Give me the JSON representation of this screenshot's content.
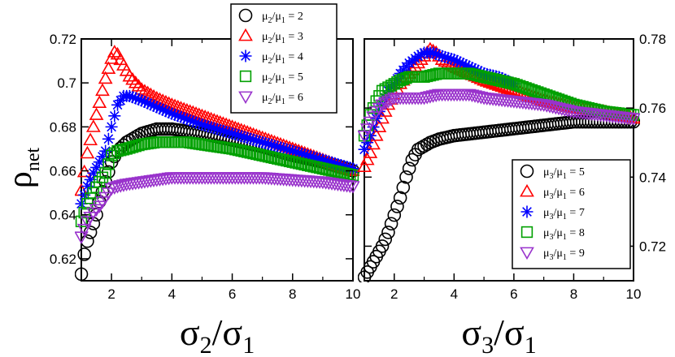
{
  "chart_data": [
    {
      "type": "scatter",
      "panel": "left",
      "ylabel": "ρ_net",
      "xlabel": "σ2/σ1",
      "xlim": [
        1,
        10
      ],
      "ylim": [
        0.61,
        0.72
      ],
      "xticks": [
        2,
        4,
        6,
        8,
        10
      ],
      "yticks": [
        0.62,
        0.64,
        0.66,
        0.68,
        0.7,
        0.72
      ],
      "ytick_labels": [
        "0.62",
        "0.64",
        "0.66",
        "0.68",
        "0.7",
        "0.72"
      ],
      "ytick_side": "left",
      "legend_position": "top-right",
      "series": [
        {
          "name": "μ2/μ1 = 2",
          "marker": "circle",
          "color": "#000000",
          "x": [
            1.0,
            1.1,
            1.2,
            1.3,
            1.4,
            1.5,
            1.6,
            1.8,
            2.0,
            2.2,
            2.5,
            3.0,
            3.5,
            3.8,
            4.0,
            4.5,
            5.0,
            6.0,
            7.0,
            8.0,
            9.0,
            10.0
          ],
          "y": [
            0.613,
            0.622,
            0.628,
            0.632,
            0.636,
            0.64,
            0.646,
            0.655,
            0.664,
            0.669,
            0.673,
            0.677,
            0.679,
            0.679,
            0.679,
            0.678,
            0.677,
            0.674,
            0.671,
            0.667,
            0.664,
            0.66
          ]
        },
        {
          "name": "μ2/μ1 = 3",
          "marker": "triangle-up",
          "color": "#ff0000",
          "x": [
            1.0,
            1.2,
            1.4,
            1.6,
            1.8,
            2.0,
            2.1,
            2.2,
            2.4,
            2.6,
            3.0,
            3.5,
            4.0,
            5.0,
            6.0,
            7.0,
            8.0,
            9.0,
            10.0
          ],
          "y": [
            0.651,
            0.668,
            0.68,
            0.691,
            0.702,
            0.711,
            0.714,
            0.713,
            0.708,
            0.703,
            0.697,
            0.693,
            0.69,
            0.685,
            0.68,
            0.675,
            0.67,
            0.665,
            0.66
          ]
        },
        {
          "name": "μ2/μ1 = 4",
          "marker": "asterisk",
          "color": "#0000ff",
          "x": [
            1.0,
            1.2,
            1.4,
            1.6,
            1.8,
            2.0,
            2.2,
            2.4,
            2.6,
            2.8,
            3.0,
            3.5,
            4.0,
            5.0,
            6.0,
            7.0,
            8.0,
            9.0,
            10.0
          ],
          "y": [
            0.645,
            0.653,
            0.659,
            0.664,
            0.669,
            0.68,
            0.69,
            0.694,
            0.694,
            0.693,
            0.692,
            0.689,
            0.686,
            0.681,
            0.677,
            0.673,
            0.669,
            0.665,
            0.661
          ]
        },
        {
          "name": "μ2/μ1 = 5",
          "marker": "square",
          "color": "#00a000",
          "x": [
            1.0,
            1.2,
            1.4,
            1.6,
            1.8,
            2.0,
            2.2,
            2.5,
            3.0,
            3.5,
            4.0,
            4.5,
            5.0,
            6.0,
            7.0,
            8.0,
            9.0,
            10.0
          ],
          "y": [
            0.637,
            0.645,
            0.65,
            0.655,
            0.659,
            0.667,
            0.669,
            0.67,
            0.672,
            0.673,
            0.673,
            0.673,
            0.672,
            0.67,
            0.667,
            0.664,
            0.661,
            0.658
          ]
        },
        {
          "name": "μ2/μ1 = 6",
          "marker": "triangle-down",
          "color": "#9933cc",
          "x": [
            1.0,
            1.2,
            1.4,
            1.6,
            1.8,
            2.0,
            2.2,
            2.5,
            3.0,
            3.5,
            4.0,
            4.5,
            5.0,
            6.0,
            7.0,
            8.0,
            9.0,
            10.0
          ],
          "y": [
            0.63,
            0.637,
            0.641,
            0.644,
            0.648,
            0.652,
            0.653,
            0.654,
            0.655,
            0.656,
            0.657,
            0.657,
            0.657,
            0.657,
            0.657,
            0.656,
            0.655,
            0.653
          ]
        }
      ]
    },
    {
      "type": "scatter",
      "panel": "right",
      "xlabel": "σ3/σ1",
      "xlim": [
        1,
        10
      ],
      "ylim": [
        0.71,
        0.78
      ],
      "xticks": [
        2,
        4,
        6,
        8,
        10
      ],
      "yticks": [
        0.72,
        0.74,
        0.76,
        0.78
      ],
      "ytick_labels": [
        "0.72",
        "0.74",
        "0.76",
        "0.78"
      ],
      "ytick_side": "right",
      "legend_position": "bottom-right",
      "series": [
        {
          "name": "μ3/μ1 = 5",
          "marker": "circle",
          "color": "#000000",
          "x": [
            1.0,
            1.2,
            1.4,
            1.6,
            1.8,
            2.0,
            2.2,
            2.4,
            2.6,
            2.8,
            3.0,
            3.2,
            3.5,
            4.0,
            5.0,
            6.0,
            7.0,
            8.0,
            9.0,
            10.0
          ],
          "y": [
            0.711,
            0.714,
            0.717,
            0.72,
            0.724,
            0.729,
            0.734,
            0.74,
            0.745,
            0.748,
            0.749,
            0.75,
            0.751,
            0.752,
            0.753,
            0.754,
            0.755,
            0.756,
            0.756,
            0.756
          ]
        },
        {
          "name": "μ3/μ1 = 6",
          "marker": "triangle-up",
          "color": "#ff0000",
          "x": [
            1.0,
            1.2,
            1.4,
            1.6,
            1.8,
            2.0,
            2.2,
            2.5,
            2.8,
            3.0,
            3.2,
            3.4,
            3.6,
            4.0,
            4.5,
            5.0,
            6.0,
            7.0,
            8.0,
            9.0,
            10.0
          ],
          "y": [
            0.743,
            0.747,
            0.752,
            0.757,
            0.761,
            0.764,
            0.767,
            0.77,
            0.773,
            0.775,
            0.777,
            0.776,
            0.774,
            0.772,
            0.77,
            0.768,
            0.765,
            0.762,
            0.76,
            0.759,
            0.757
          ]
        },
        {
          "name": "μ3/μ1 = 7",
          "marker": "asterisk",
          "color": "#0000ff",
          "x": [
            1.0,
            1.2,
            1.4,
            1.6,
            1.8,
            2.0,
            2.2,
            2.5,
            2.8,
            3.0,
            3.3,
            3.6,
            4.0,
            4.5,
            5.0,
            5.5,
            6.0
          ],
          "y": [
            0.748,
            0.752,
            0.757,
            0.761,
            0.765,
            0.767,
            0.77,
            0.773,
            0.775,
            0.776,
            0.776,
            0.775,
            0.774,
            0.772,
            0.77,
            0.769,
            0.767
          ]
        },
        {
          "name": "μ3/μ1 = 8",
          "marker": "square",
          "color": "#00a000",
          "x": [
            1.0,
            1.2,
            1.4,
            1.6,
            1.8,
            2.0,
            2.2,
            2.5,
            3.0,
            3.5,
            4.0,
            4.5,
            5.0,
            5.5,
            6.0,
            7.0,
            8.0,
            9.0,
            10.0
          ],
          "y": [
            0.752,
            0.758,
            0.762,
            0.765,
            0.766,
            0.767,
            0.768,
            0.769,
            0.769,
            0.77,
            0.77,
            0.77,
            0.769,
            0.768,
            0.767,
            0.764,
            0.761,
            0.759,
            0.758
          ]
        },
        {
          "name": "μ3/μ1 = 9",
          "marker": "triangle-down",
          "color": "#9933cc",
          "x": [
            1.0,
            1.2,
            1.4,
            1.6,
            1.8,
            2.0,
            2.2,
            2.5,
            3.0,
            3.5,
            4.0,
            4.5,
            5.0,
            6.0,
            7.0,
            8.0,
            9.0,
            10.0
          ],
          "y": [
            0.752,
            0.756,
            0.759,
            0.761,
            0.762,
            0.763,
            0.763,
            0.763,
            0.763,
            0.764,
            0.764,
            0.764,
            0.763,
            0.762,
            0.761,
            0.759,
            0.758,
            0.757
          ]
        }
      ]
    }
  ]
}
